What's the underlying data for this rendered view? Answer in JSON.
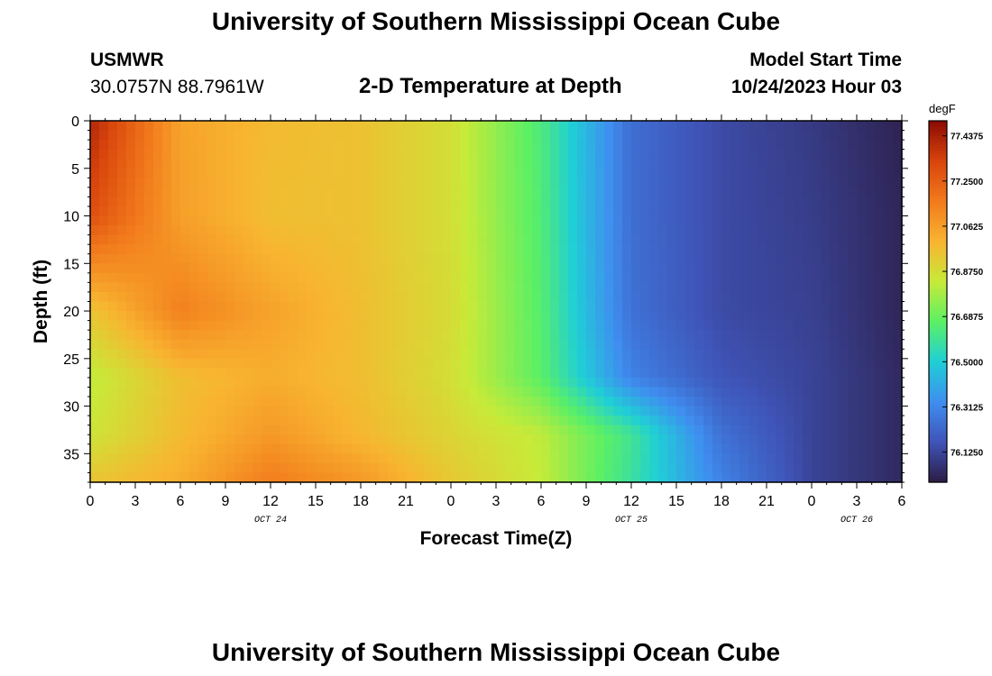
{
  "header": {
    "title": "University of Southern Mississippi Ocean Cube",
    "station": "USMWR",
    "coordinates": "30.0757N  88.7961W",
    "subtitle": "2-D Temperature at Depth",
    "model_start_label": "Model Start Time",
    "model_start_value": "10/24/2023 Hour 03"
  },
  "footer": {
    "title": "University of Southern Mississippi Ocean Cube"
  },
  "chart_data": {
    "type": "heatmap",
    "title": "2-D Temperature at Depth",
    "xlabel": "Forecast Time(Z)",
    "ylabel": "Depth (ft)",
    "x_range_hours": [
      0,
      54
    ],
    "ylim": [
      0,
      38
    ],
    "y_inverted": true,
    "x_tick_labels": [
      "0",
      "3",
      "6",
      "9",
      "12",
      "15",
      "18",
      "21",
      "0",
      "3",
      "6",
      "9",
      "12",
      "15",
      "18",
      "21",
      "0",
      "3",
      "6"
    ],
    "y_ticks": [
      0,
      5,
      10,
      15,
      20,
      25,
      30,
      35
    ],
    "date_labels": [
      {
        "label": "OCT 24",
        "hour": 12
      },
      {
        "label": "OCT 25",
        "hour": 36
      },
      {
        "label": "OCT 26",
        "hour": 51
      }
    ],
    "colorbar": {
      "unit": "degF",
      "min": 76.0,
      "max": 77.5,
      "tick_labels": [
        "77.4375",
        "77.2500",
        "77.0625",
        "76.8750",
        "76.6875",
        "76.5000",
        "76.3125",
        "76.1250"
      ]
    },
    "colormap": [
      "#2c1c44",
      "#3f54b8",
      "#3f8ef0",
      "#1fcfd6",
      "#5cf064",
      "#c8ea38",
      "#f8b430",
      "#f27a1c",
      "#d8440c",
      "#8a0a04"
    ],
    "grid": false,
    "approx_temperature_degF_at_depth": {
      "depths_ft": [
        0,
        10,
        20,
        27,
        33,
        38
      ],
      "hours": [
        0,
        6,
        12,
        18,
        24,
        30,
        36,
        42,
        48,
        54
      ],
      "values": [
        [
          77.42,
          77.05,
          76.98,
          76.96,
          76.87,
          76.63,
          76.24,
          76.14,
          76.09,
          76.02
        ],
        [
          77.3,
          77.06,
          76.97,
          76.96,
          76.87,
          76.64,
          76.24,
          76.14,
          76.1,
          76.03
        ],
        [
          76.95,
          77.15,
          77.05,
          76.97,
          76.88,
          76.65,
          76.25,
          76.14,
          76.11,
          76.03
        ],
        [
          76.82,
          76.97,
          77.02,
          76.97,
          76.87,
          76.66,
          76.3,
          76.17,
          76.12,
          76.04
        ],
        [
          76.85,
          76.98,
          77.08,
          76.99,
          76.9,
          76.82,
          76.6,
          76.25,
          76.12,
          76.04
        ],
        [
          76.95,
          77.02,
          77.16,
          77.08,
          76.94,
          76.83,
          76.58,
          76.3,
          76.12,
          76.04
        ]
      ]
    }
  }
}
